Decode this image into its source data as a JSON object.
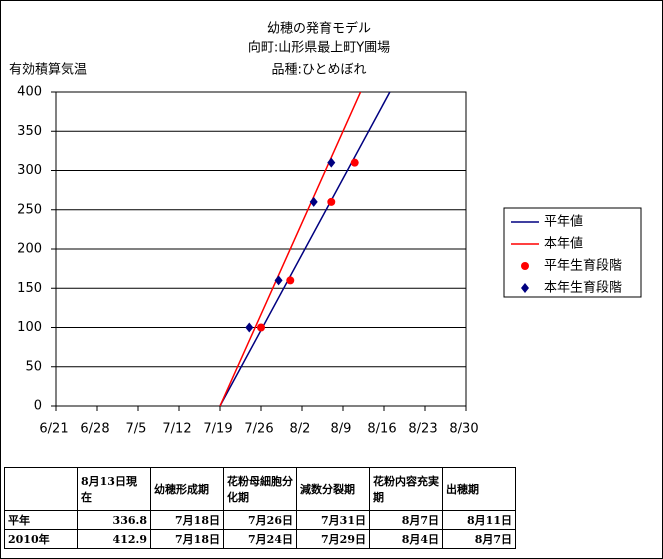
{
  "chart_data": {
    "type": "line",
    "title": "幼穂の発育モデル",
    "subtitle": "向町:山形県最上町Y圃場",
    "subtitle2": "品種:ひとめぼれ",
    "y_label": "有効積算気温",
    "xlim": [
      "6/21",
      "8/30"
    ],
    "xticks": [
      "6/21",
      "6/28",
      "7/5",
      "7/12",
      "7/19",
      "7/26",
      "8/2",
      "8/9",
      "8/16",
      "8/23",
      "8/30"
    ],
    "ylim": [
      0,
      400
    ],
    "yticks": [
      0,
      50,
      100,
      150,
      200,
      250,
      300,
      350,
      400
    ],
    "grid": true,
    "legend": "right",
    "series": [
      {
        "name": "平年値",
        "color": "#000080",
        "style": "line",
        "x": [
          "7/19",
          "8/17"
        ],
        "values": [
          0,
          400
        ]
      },
      {
        "name": "本年値",
        "color": "#ff0000",
        "style": "line",
        "x": [
          "7/19",
          "8/12"
        ],
        "values": [
          0,
          400
        ]
      },
      {
        "name": "平年生育段階",
        "color": "#ff0000",
        "style": "circle",
        "x": [
          "7/26",
          "7/31",
          "8/7",
          "8/11"
        ],
        "values": [
          100,
          160,
          260,
          310
        ]
      },
      {
        "name": "本年生育段階",
        "color": "#000080",
        "style": "diamond",
        "x": [
          "7/24",
          "7/29",
          "8/4",
          "8/7"
        ],
        "values": [
          100,
          160,
          260,
          310
        ]
      }
    ]
  },
  "table": {
    "header": [
      "8月13日現在",
      "幼穂形成期",
      "花粉母細胞分化期",
      "減数分裂期",
      "花粉内容充実期",
      "出穂期"
    ],
    "rows": [
      [
        "平年",
        336.8,
        "7月18日",
        "7月26日",
        "7月31日",
        "8月7日",
        "8月11日"
      ],
      [
        "2010年",
        412.9,
        "7月18日",
        "7月24日",
        "7月29日",
        "8月4日",
        "8月7日"
      ]
    ]
  }
}
